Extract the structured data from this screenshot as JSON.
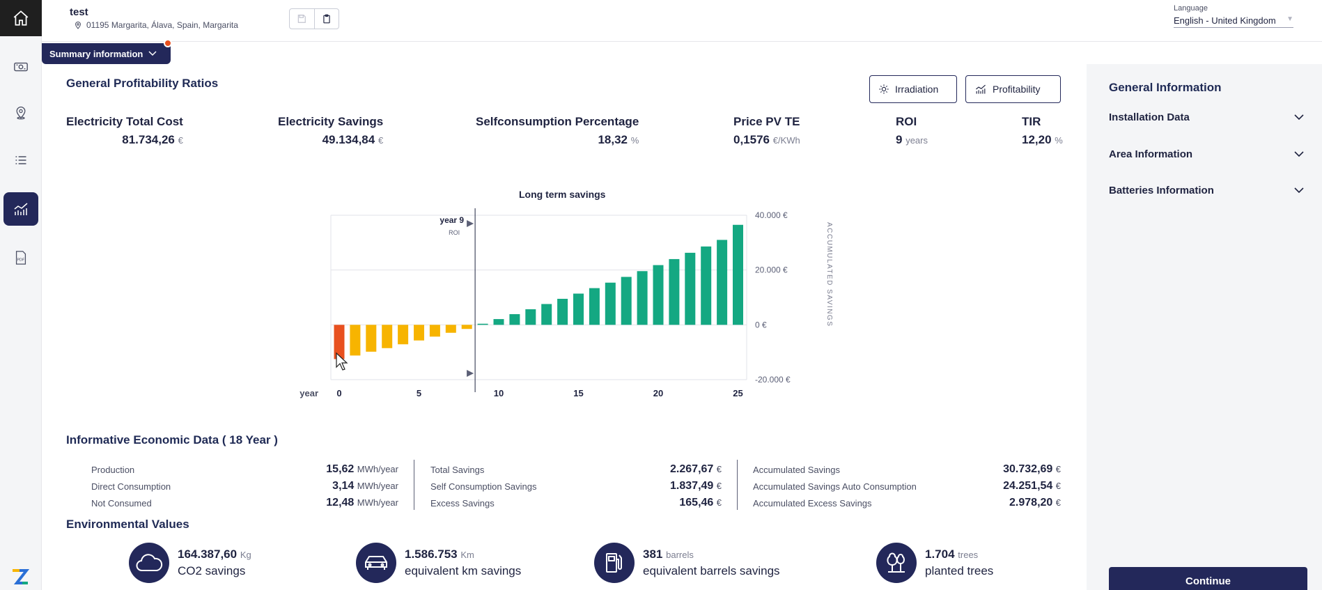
{
  "header": {
    "project_name": "test",
    "address": "01195 Margarita, Álava, Spain, Margarita",
    "language_label": "Language",
    "language_value": "English - United Kingdom"
  },
  "summary_tab": {
    "label": "Summary information"
  },
  "profitability": {
    "title": "General Profitability Ratios",
    "buttons": {
      "irradiation": "Irradiation",
      "profitability": "Profitability"
    },
    "ratios": [
      {
        "label": "Electricity Total Cost",
        "value": "81.734,26",
        "unit": "€"
      },
      {
        "label": "Electricity Savings",
        "value": "49.134,84",
        "unit": "€"
      },
      {
        "label": "Selfconsumption Percentage",
        "value": "18,32",
        "unit": "%"
      },
      {
        "label": "Price PV TE",
        "value": "0,1576",
        "unit": "€/KWh"
      },
      {
        "label": "ROI",
        "value": "9",
        "unit": "years"
      },
      {
        "label": "TIR",
        "value": "12,20",
        "unit": "%"
      }
    ]
  },
  "chart_data": {
    "type": "bar",
    "title": "Long term savings",
    "xlabel": "year",
    "ylabel": "ACCUMULATED SAVINGS",
    "x_ticks": [
      "0",
      "5",
      "10",
      "15",
      "20",
      "25"
    ],
    "y_ticks": [
      "40.000 €",
      "20.000 €",
      "0 €",
      "-20.000 €"
    ],
    "ylim": [
      -20000,
      40000
    ],
    "xlim": [
      0,
      25
    ],
    "roi_marker": {
      "label": "year 9",
      "sublabel": "ROI",
      "year": 9
    },
    "highlighted_year": 0,
    "colors": {
      "negative": "#f7b400",
      "positive": "#14a882",
      "highlight": "#e8501f"
    },
    "years": [
      0,
      1,
      2,
      3,
      4,
      5,
      6,
      7,
      8,
      9,
      10,
      11,
      12,
      13,
      14,
      15,
      16,
      17,
      18,
      19,
      20,
      21,
      22,
      23,
      24,
      25
    ],
    "values": [
      -12500,
      -11200,
      -9800,
      -8500,
      -7100,
      -5700,
      -4300,
      -2900,
      -1500,
      400,
      2100,
      3900,
      5700,
      7600,
      9500,
      11400,
      13400,
      15400,
      17500,
      19600,
      21800,
      24000,
      26300,
      28600,
      31000,
      36500
    ]
  },
  "informative": {
    "title": "Informative Economic Data ( 18 Year )",
    "col1": [
      {
        "label": "Production",
        "value": "15,62",
        "unit": "MWh/year"
      },
      {
        "label": "Direct Consumption",
        "value": "3,14",
        "unit": "MWh/year"
      },
      {
        "label": "Not Consumed",
        "value": "12,48",
        "unit": "MWh/year"
      }
    ],
    "col2": [
      {
        "label": "Total Savings",
        "value": "2.267,67",
        "unit": "€"
      },
      {
        "label": "Self Consumption Savings",
        "value": "1.837,49",
        "unit": "€"
      },
      {
        "label": "Excess Savings",
        "value": "165,46",
        "unit": "€"
      }
    ],
    "col3": [
      {
        "label": "Accumulated Savings",
        "value": "30.732,69",
        "unit": "€"
      },
      {
        "label": "Accumulated Savings Auto Consumption",
        "value": "24.251,54",
        "unit": "€"
      },
      {
        "label": "Accumulated Excess Savings",
        "value": "2.978,20",
        "unit": "€"
      }
    ]
  },
  "environment": {
    "title": "Environmental Values",
    "items": [
      {
        "icon": "cloud-icon",
        "value": "164.387,60",
        "unit": "Kg",
        "desc": "CO2 savings"
      },
      {
        "icon": "car-icon",
        "value": "1.586.753",
        "unit": "Km",
        "desc": "equivalent km savings"
      },
      {
        "icon": "fuel-pump-icon",
        "value": "381",
        "unit": "barrels",
        "desc": "equivalent barrels savings"
      },
      {
        "icon": "trees-icon",
        "value": "1.704",
        "unit": "trees",
        "desc": "planted trees"
      }
    ]
  },
  "right_panel": {
    "title": "General Information",
    "sections": [
      "Installation Data",
      "Area Information",
      "Batteries Information"
    ],
    "continue_label": "Continue"
  }
}
